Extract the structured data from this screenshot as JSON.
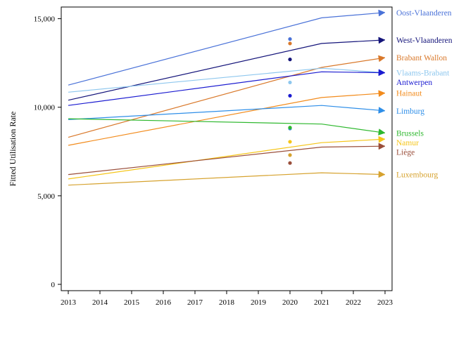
{
  "chart_data": {
    "type": "line",
    "xlabel": "",
    "ylabel": "Fitted Utilisation Rate",
    "x": [
      2013,
      2021,
      2023
    ],
    "xlim": [
      2013,
      2023
    ],
    "ylim": [
      0,
      15500
    ],
    "x_ticks": [
      "2013",
      "2014",
      "2015",
      "2016",
      "2017",
      "2018",
      "2019",
      "2020",
      "2021",
      "2022",
      "2023"
    ],
    "y_ticks": [
      0,
      5000,
      10000,
      15000
    ],
    "y_tick_labels": [
      "0",
      "5,000",
      "10,000",
      "15,000"
    ],
    "grid": false,
    "legend": "series labels at right end of lines",
    "series": [
      {
        "name": "Oost-Vlaanderen",
        "color": "#4a72d8",
        "values": [
          11250,
          15050,
          15350
        ],
        "observed_2020": 13850
      },
      {
        "name": "West-Vlaanderen",
        "color": "#14147a",
        "values": [
          10400,
          13600,
          13800
        ],
        "observed_2020": 12700
      },
      {
        "name": "Brabant Wallon",
        "color": "#d9782a",
        "values": [
          8300,
          12250,
          12800
        ],
        "observed_2020": 13600
      },
      {
        "name": "Vlaams-Brabant",
        "color": "#8ec7ee",
        "values": [
          10850,
          12200,
          11950
        ],
        "observed_2020": 11400
      },
      {
        "name": "Antwerpen",
        "color": "#1a1ad0",
        "values": [
          10100,
          12000,
          11950
        ],
        "observed_2020": 10650
      },
      {
        "name": "Hainaut",
        "color": "#f28b1c",
        "values": [
          7850,
          10550,
          10800
        ],
        "observed_2020": 8800
      },
      {
        "name": "Limburg",
        "color": "#2e8ee8",
        "values": [
          9300,
          10100,
          9800
        ],
        "observed_2020": 8800
      },
      {
        "name": "Brussels",
        "color": "#2eb82e",
        "values": [
          9350,
          9050,
          8550
        ],
        "observed_2020": 8850
      },
      {
        "name": "Namur",
        "color": "#f5c518",
        "values": [
          5950,
          8000,
          8200
        ],
        "observed_2020": 8050
      },
      {
        "name": "Liège",
        "color": "#9a4e3a",
        "values": [
          6200,
          7750,
          7800
        ],
        "observed_2020": 6850
      },
      {
        "name": "Luxembourg",
        "color": "#d6a22e",
        "values": [
          5600,
          6300,
          6200
        ],
        "observed_2020": 7300
      }
    ]
  }
}
